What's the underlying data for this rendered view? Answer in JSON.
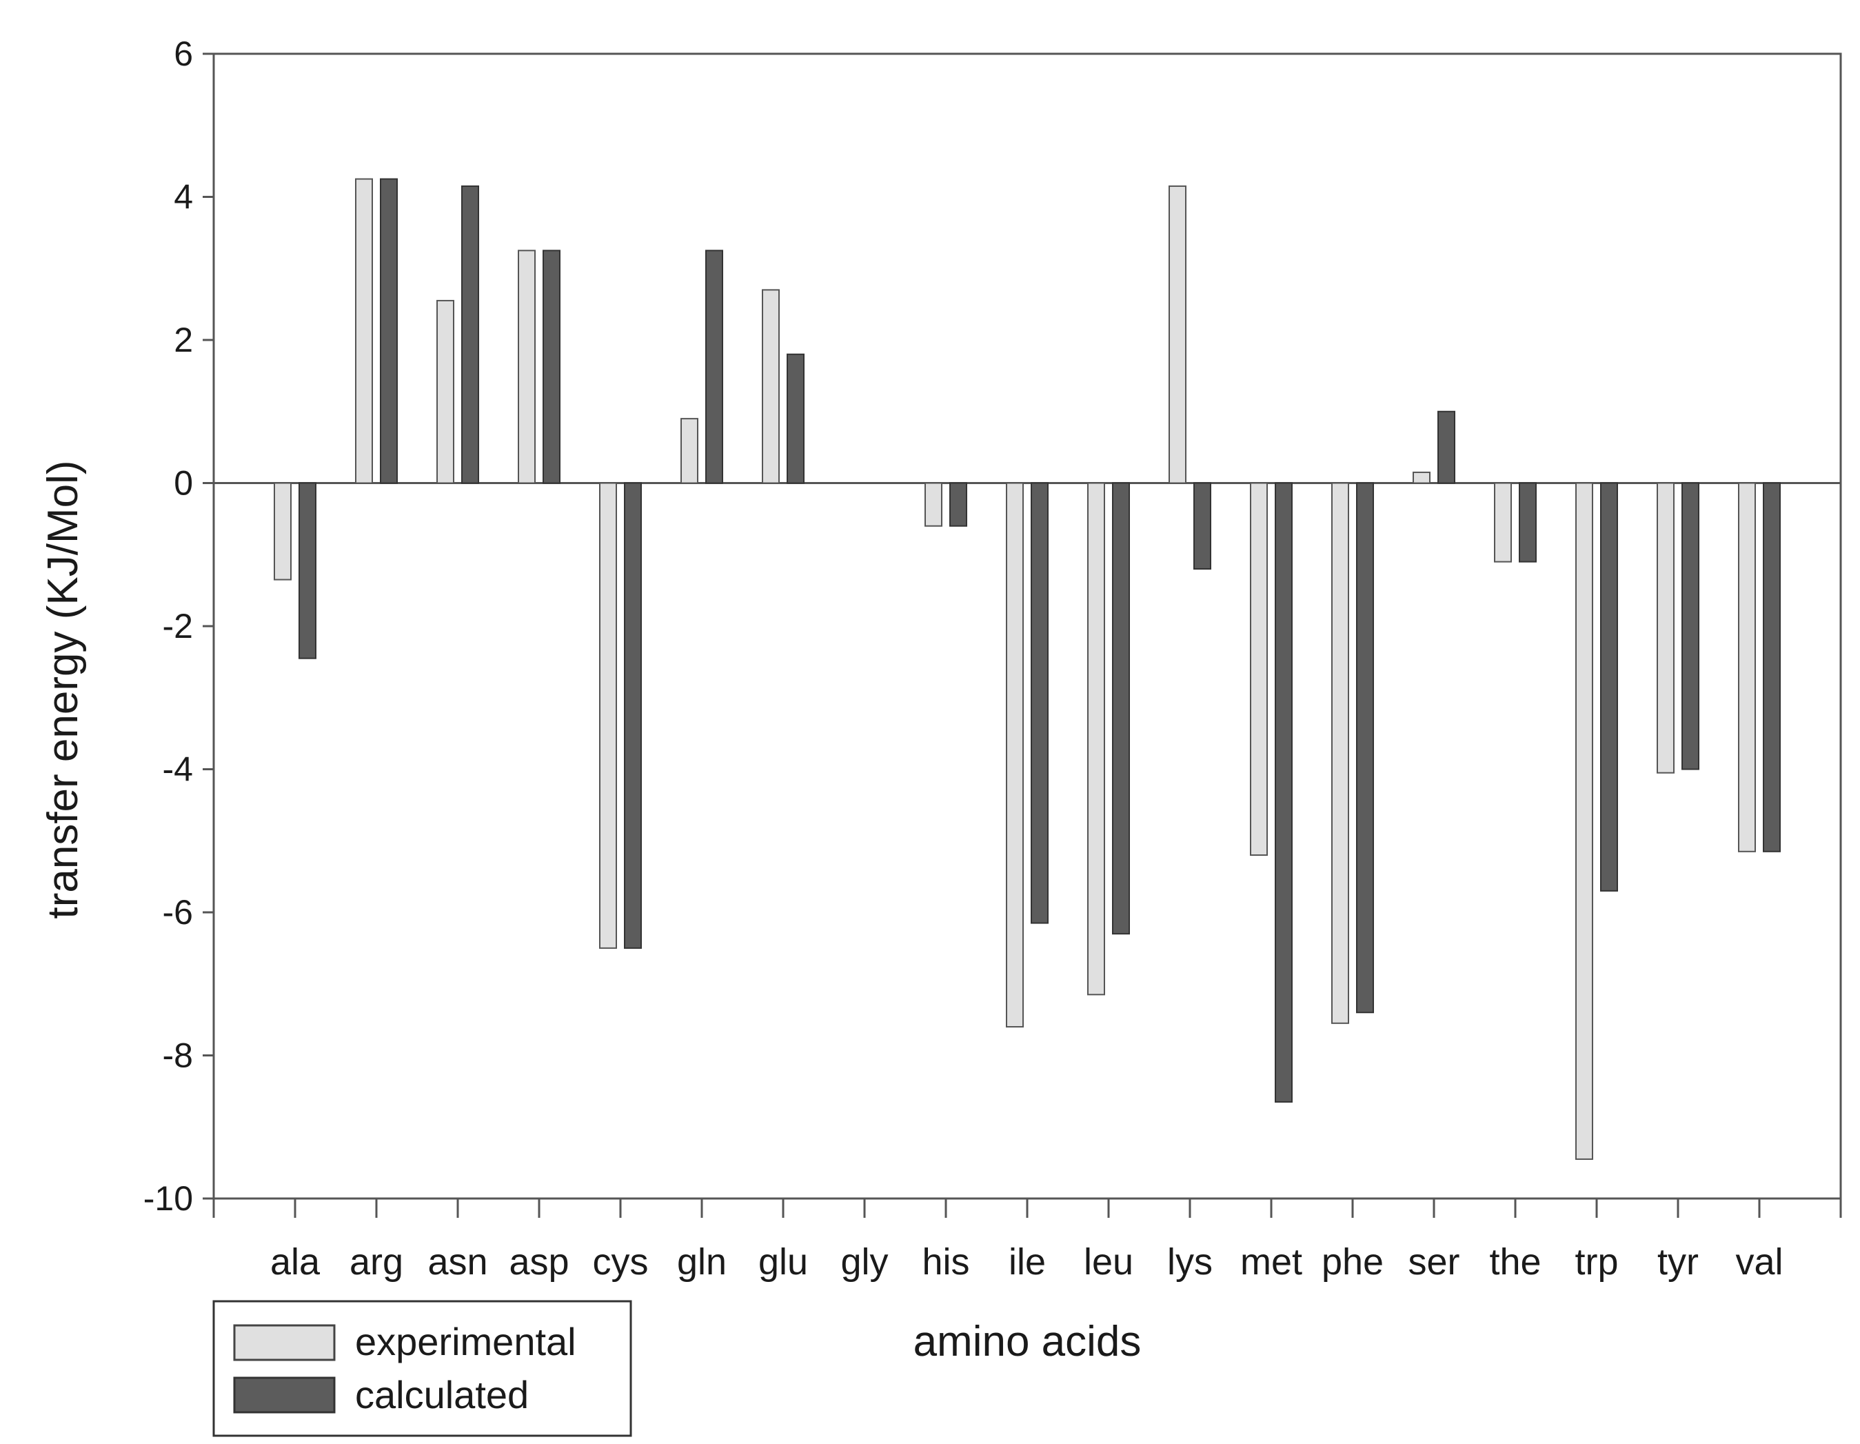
{
  "chart_data": {
    "type": "bar",
    "xlabel": "amino acids",
    "ylabel": "transfer energy (KJ/Mol)",
    "ylim": [
      -10,
      6
    ],
    "yticks": [
      "6",
      "4",
      "2",
      "0",
      "-2",
      "-4",
      "-6",
      "-8",
      "-10"
    ],
    "categories": [
      "ala",
      "arg",
      "asn",
      "asp",
      "cys",
      "gln",
      "glu",
      "gly",
      "his",
      "ile",
      "leu",
      "lys",
      "met",
      "phe",
      "ser",
      "the",
      "trp",
      "tyr",
      "val"
    ],
    "series": [
      {
        "name": "experimental",
        "color": "#e0e0e0",
        "values": [
          -1.35,
          4.25,
          2.55,
          3.25,
          -6.5,
          0.9,
          2.7,
          0,
          -0.6,
          -7.6,
          -7.15,
          4.15,
          -5.2,
          -7.55,
          0.15,
          -1.1,
          -9.45,
          -4.05,
          -5.15
        ]
      },
      {
        "name": "calculated",
        "color": "#5c5c5c",
        "values": [
          -2.45,
          4.25,
          4.15,
          3.25,
          -6.5,
          3.25,
          1.8,
          0,
          -0.6,
          -6.15,
          -6.3,
          -1.2,
          -8.65,
          -7.4,
          1.0,
          -1.1,
          -5.7,
          -4.0,
          -5.15
        ]
      }
    ],
    "legend": {
      "position": "bottom-left",
      "entries": [
        "experimental",
        "calculated"
      ]
    },
    "grid": false
  }
}
